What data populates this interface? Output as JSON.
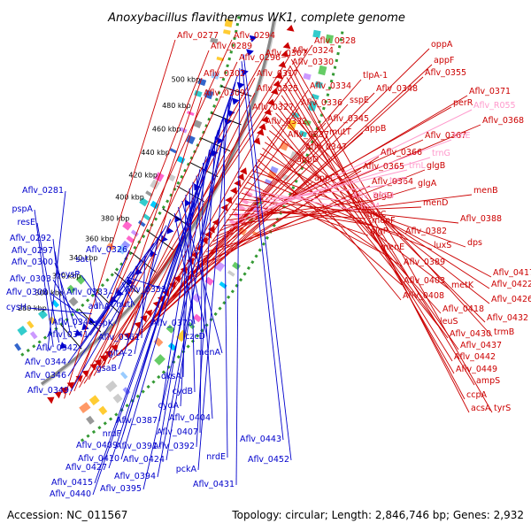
{
  "title": "Anoxybacillus flavithermus WK1, complete genome",
  "footer": {
    "accession": "Accession: NC_011567",
    "topology": "Topology: circular; Length: 2,846,746 bp; Genes: 2,932"
  },
  "colors": {
    "forward": "#cc0000",
    "reverse": "#0000cc",
    "rna": "#ff99cc",
    "backbone": "#888888",
    "dotted": "#339933"
  },
  "ticks": [
    {
      "label": "280 kbp"
    },
    {
      "label": "300 kbp"
    },
    {
      "label": "320 kbp"
    },
    {
      "label": "340 kbp"
    },
    {
      "label": "360 kbp"
    },
    {
      "label": "380 kbp"
    },
    {
      "label": "400 kbp"
    },
    {
      "label": "420 kbp"
    },
    {
      "label": "440 kbp"
    },
    {
      "label": "460 kbp"
    },
    {
      "label": "480 kbp"
    },
    {
      "label": "500 kbp"
    }
  ],
  "forward_labels": [
    "Aflv_0277",
    "Aflv_0294",
    "Aflv_0289",
    "Aflv_0307",
    "Aflv_0328",
    "Aflv_0296",
    "Aflv_0324",
    "Aflv_0330",
    "Aflv_0302",
    "Aflv_0317",
    "oppA",
    "appF",
    "Aflv_0355",
    "Aflv_0309",
    "Aflv_0325",
    "Aflv_0334",
    "tlpA-1",
    "Aflv_0348",
    "sspE",
    "Aflv_0336",
    "Aflv_0327",
    "Aflv_0332",
    "Aflv_0345",
    "appB",
    "Aflv_0337",
    "mutT",
    "Aflv_0347",
    "Aflv_0366",
    "appD",
    "Aflv_0365",
    "Aflv_0364",
    "appC",
    "glgB",
    "glgA",
    "Aflv_0371",
    "perR",
    "Aflv_0368",
    "Aflv_0367",
    "menB",
    "glgD",
    "menD",
    "glgC",
    "menF",
    "Aflv_0388",
    "glgP",
    "Aflv_0382",
    "menE",
    "luxS",
    "dps",
    "Aflv_0389",
    "Aflv_0403",
    "Aflv_0417",
    "metK",
    "Aflv_0422",
    "Aflv_0408",
    "Aflv_0426",
    "Aflv_0418",
    "leuS",
    "Aflv_0432",
    "Aflv_0430",
    "trmB",
    "Aflv_0437",
    "Aflv_0442",
    "Aflv_0449",
    "ampS",
    "ccpA",
    "acsA",
    "tyrS"
  ],
  "rna_labels": [
    "Aflv_R055",
    "trnE",
    "trnG",
    "trnL",
    "trnT",
    "Aflv_R054",
    "trnM"
  ],
  "reverse_labels": [
    "Aflv_0281",
    "pspA",
    "resE",
    "Aflv_0292",
    "Aflv_0297",
    "Aflv_0300",
    "Aflv_0303",
    "Aflv_0308",
    "cysH",
    "sat",
    "cysP",
    "Aflv_0326",
    "Aflv_0333",
    "adhA",
    "hutI",
    "Aflv_0353",
    "Aflv_0340",
    "sspK",
    "Aflv_0341",
    "Aflv_0361",
    "Aflv_0342",
    "Aflv_0344",
    "gltA-2",
    "Aflv_0346",
    "Aflv_0349",
    "gsaB",
    "Aflv_0370",
    "czcD",
    "menA",
    "dksA",
    "cydB",
    "cydA",
    "Aflv_0404",
    "Aflv_0387",
    "Aflv_0407",
    "nrdF",
    "Aflv_0391",
    "Aflv_0409",
    "Aflv_0392",
    "Aflv_0410",
    "Aflv_0424",
    "nrdE",
    "Aflv_0427",
    "pckA",
    "Aflv_0394",
    "Aflv_0415",
    "Aflv_0395",
    "Aflv_0440",
    "Aflv_0431",
    "Aflv_0443",
    "Aflv_0452"
  ]
}
